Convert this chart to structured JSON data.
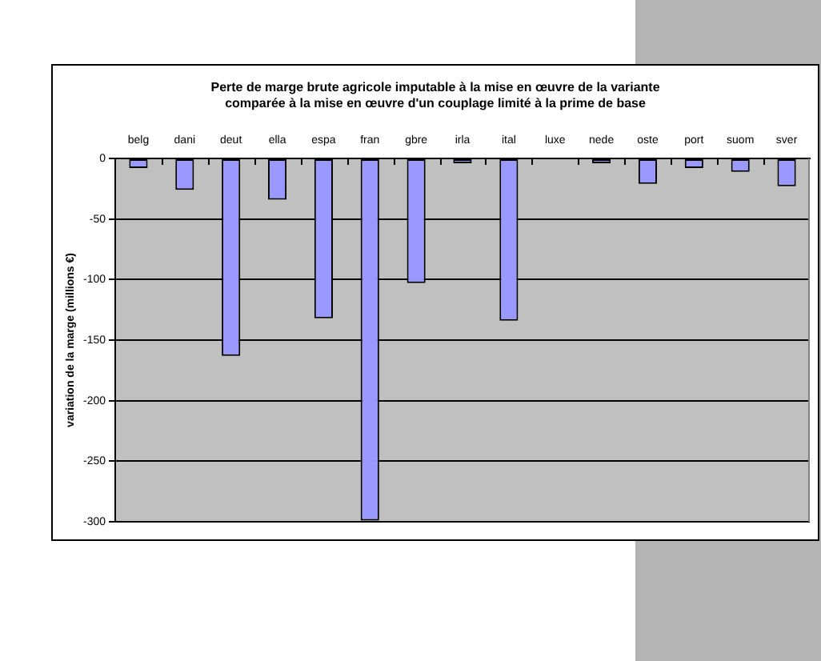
{
  "chart_data": {
    "type": "bar",
    "title": "Perte de marge brute agricole imputable à la mise en œuvre de la variante comparée à la mise en œuvre d'un couplage limité à la prime de base",
    "ylabel": "variation de la marge (millions €)",
    "categories": [
      "belg",
      "dani",
      "deut",
      "ella",
      "espa",
      "fran",
      "gbre",
      "irla",
      "ital",
      "luxe",
      "nede",
      "oste",
      "port",
      "suom",
      "sver"
    ],
    "values": [
      -8,
      -26,
      -163,
      -34,
      -132,
      -299,
      -103,
      -4,
      -134,
      0,
      -4,
      -21,
      -8,
      -11,
      -23
    ],
    "color": "#9999ff",
    "ylim": [
      -300,
      0
    ],
    "yticks": [
      -300,
      -250,
      -200,
      -150,
      -100,
      -50,
      0
    ],
    "grid": "y"
  }
}
